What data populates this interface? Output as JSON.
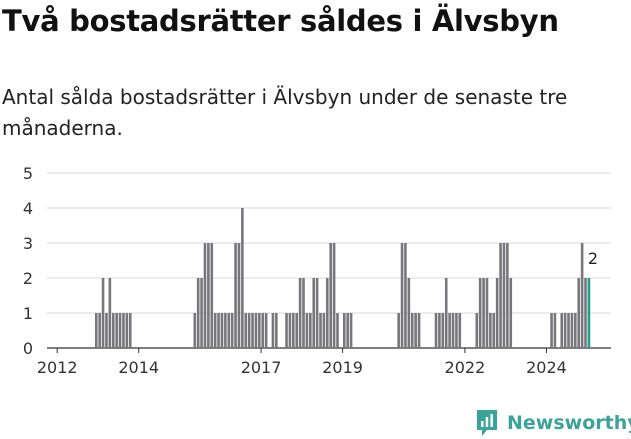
{
  "title": "Två bostadsrätter såldes i Älvsbyn",
  "subtitle": "Antal sålda bostadsrätter i Älvsbyn under de senaste tre månaderna.",
  "brand": {
    "name": "Newsworthy",
    "color": "#3aa39a"
  },
  "chart_data": {
    "type": "bar",
    "title": "",
    "xlabel": "",
    "ylabel": "",
    "ylim": [
      0,
      5
    ],
    "y_ticks": [
      "0",
      "1",
      "2",
      "3",
      "4",
      "5"
    ],
    "x_ticks": [
      "2012",
      "2014",
      "2017",
      "2019",
      "2022",
      "2024"
    ],
    "x_range": [
      "2011-10",
      "2025-08"
    ],
    "grid": true,
    "bar_color": "#77767b",
    "highlight_color": "#1f9a8f",
    "highlight_label": "2",
    "series": [
      {
        "months": [
          "2012-12",
          "2013-01",
          "2013-02",
          "2013-03",
          "2013-04",
          "2013-05",
          "2013-06",
          "2013-07",
          "2013-08",
          "2013-09",
          "2013-10",
          "2015-05",
          "2015-06",
          "2015-07",
          "2015-08",
          "2015-09",
          "2015-10",
          "2015-11",
          "2015-12",
          "2016-01",
          "2016-02",
          "2016-03",
          "2016-04",
          "2016-05",
          "2016-06",
          "2016-07",
          "2016-08",
          "2016-09",
          "2016-10",
          "2016-11",
          "2016-12",
          "2017-01",
          "2017-02",
          "2017-04",
          "2017-05",
          "2017-08",
          "2017-09",
          "2017-10",
          "2017-11",
          "2017-12",
          "2018-01",
          "2018-02",
          "2018-03",
          "2018-04",
          "2018-05",
          "2018-06",
          "2018-07",
          "2018-08",
          "2018-09",
          "2018-10",
          "2018-11",
          "2019-01",
          "2019-02",
          "2019-03",
          "2020-05",
          "2020-06",
          "2020-07",
          "2020-08",
          "2020-09",
          "2020-10",
          "2020-11",
          "2021-04",
          "2021-05",
          "2021-06",
          "2021-07",
          "2021-08",
          "2021-09",
          "2021-10",
          "2021-11",
          "2022-04",
          "2022-05",
          "2022-06",
          "2022-07",
          "2022-08",
          "2022-09",
          "2022-10",
          "2022-11",
          "2022-12",
          "2023-01",
          "2023-02",
          "2024-02",
          "2024-03",
          "2024-05",
          "2024-06",
          "2024-07",
          "2024-08",
          "2024-09",
          "2024-10",
          "2024-11",
          "2024-12",
          "2025-01"
        ],
        "values": [
          1,
          1,
          2,
          1,
          2,
          1,
          1,
          1,
          1,
          1,
          1,
          1,
          2,
          2,
          3,
          3,
          3,
          1,
          1,
          1,
          1,
          1,
          1,
          3,
          3,
          4,
          1,
          1,
          1,
          1,
          1,
          1,
          1,
          1,
          1,
          1,
          1,
          1,
          1,
          2,
          2,
          1,
          1,
          2,
          2,
          1,
          1,
          2,
          3,
          3,
          1,
          1,
          1,
          1,
          1,
          3,
          3,
          2,
          1,
          1,
          1,
          1,
          1,
          1,
          2,
          1,
          1,
          1,
          1,
          1,
          2,
          2,
          2,
          1,
          1,
          2,
          3,
          3,
          3,
          2,
          1,
          1,
          1,
          1,
          1,
          1,
          1,
          2,
          3,
          2,
          2
        ]
      }
    ],
    "highlight_month": "2025-01"
  }
}
